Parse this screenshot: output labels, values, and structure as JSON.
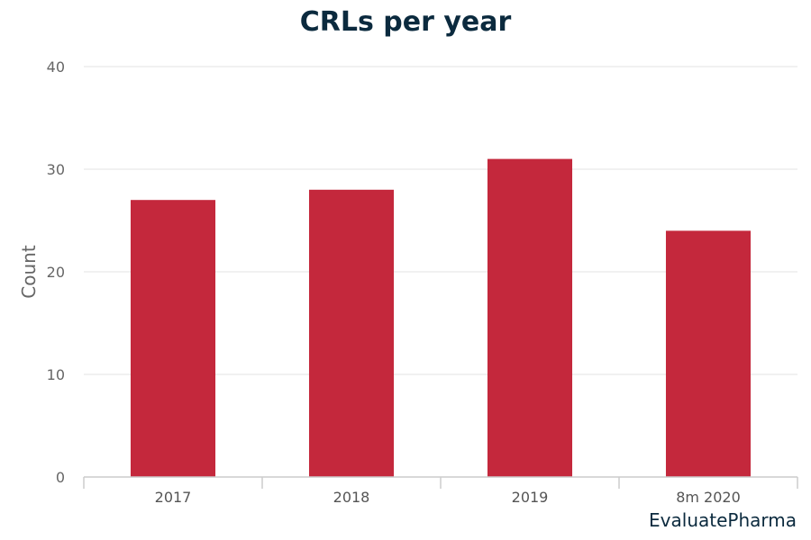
{
  "title": "CRLs per year",
  "source": "EvaluatePharma",
  "colors": {
    "bar": "#c4283c",
    "grid": "#e3e3e3",
    "axis": "#cccccc",
    "title": "#0b2a3e"
  },
  "chart_data": {
    "type": "bar",
    "title": "CRLs per year",
    "categories": [
      "2017",
      "2018",
      "2019",
      "8m 2020"
    ],
    "series": [
      {
        "values": [
          27,
          28,
          31,
          24
        ]
      }
    ],
    "xlabel": "",
    "ylabel": "Count",
    "ylim": [
      0,
      40
    ],
    "yticks": [
      0,
      10,
      20,
      30,
      40
    ],
    "grid": true,
    "legend": "none"
  }
}
